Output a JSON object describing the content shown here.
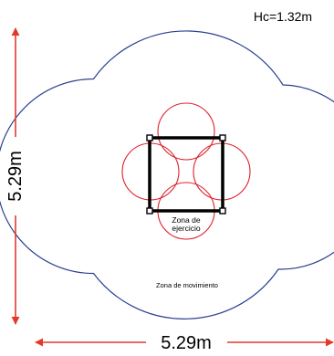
{
  "header": {
    "height_label": "Hc=1.32m"
  },
  "dimensions": {
    "vertical_label": "5.29m",
    "horizontal_label": "5.29m"
  },
  "zones": {
    "exercise_label_line1": "Zona de",
    "exercise_label_line2": "ejercicio",
    "movement_label": "Zona de movimiento"
  },
  "colors": {
    "movement_zone": "#2b3f8f",
    "circles": "#e0202a",
    "arrows": "#e23a2a",
    "frame": "#000000",
    "text": "#000000"
  }
}
